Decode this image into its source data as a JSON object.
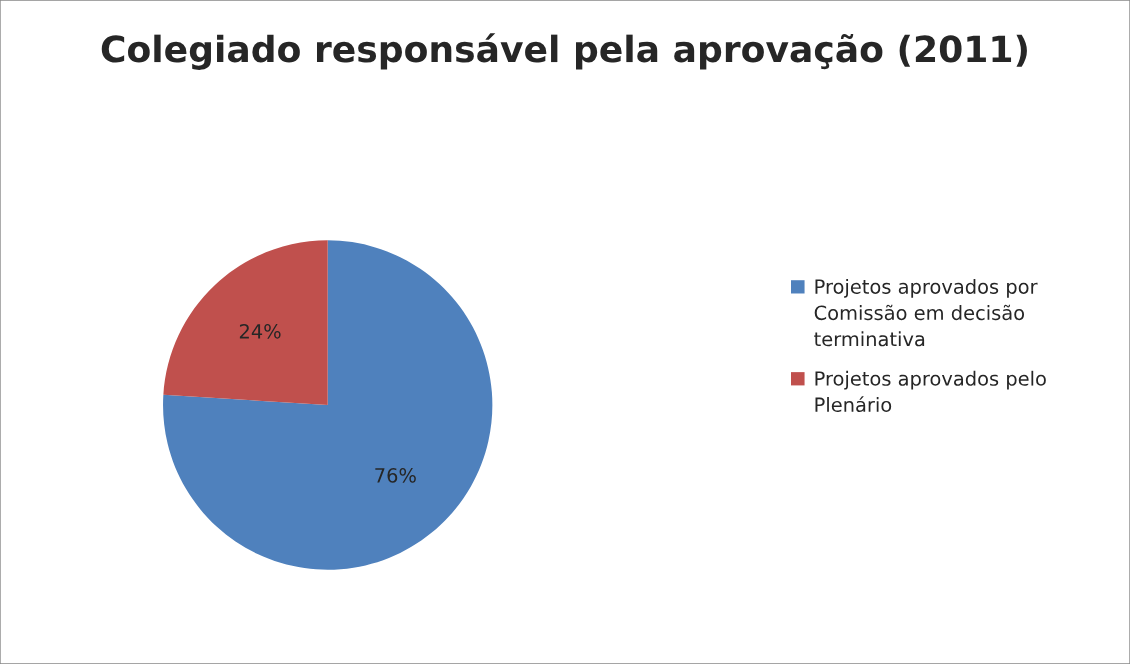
{
  "chart_data": {
    "type": "pie",
    "title": "Colegiado responsável pela aprovação (2011)",
    "categories": [
      "Projetos aprovados por Comissão em decisão terminativa",
      "Projetos aprovados pelo Plenário"
    ],
    "values": [
      76,
      24
    ],
    "colors": [
      "#4f81bd",
      "#c0504d"
    ],
    "value_labels": [
      "76%",
      "24%"
    ],
    "legend": "right"
  }
}
